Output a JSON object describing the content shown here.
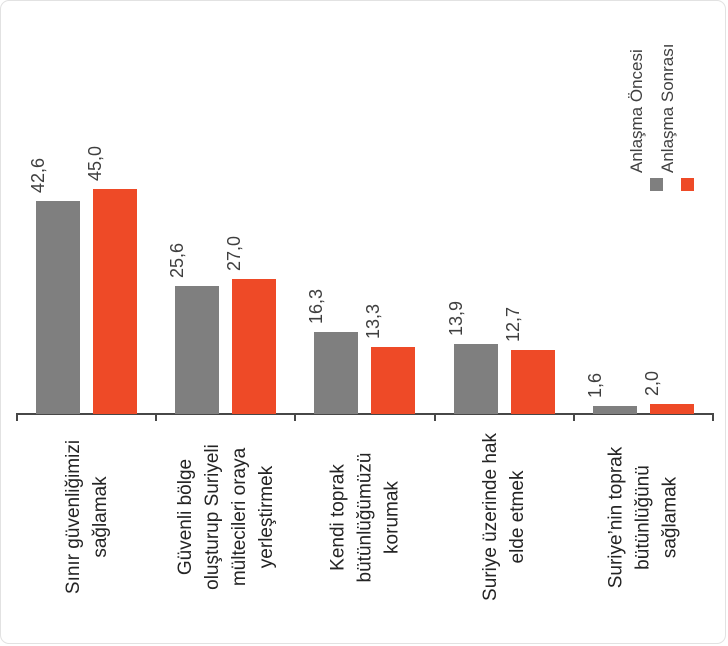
{
  "chart_data": {
    "type": "bar",
    "title": "",
    "xlabel": "",
    "ylabel": "",
    "ylim": [
      0,
      45
    ],
    "grid": false,
    "legend_position": "top-right",
    "value_label_rotation_deg": 90,
    "category_label_rotation_deg": 90,
    "decimal_separator": ",",
    "categories": [
      "Sınır güvenliğimizi sağlamak",
      "Güvenli bölge oluşturup Suriyeli mültecileri oraya yerleştirmek",
      "Kendi toprak bütünlüğümüzü korumak",
      "Suriye üzerinde hak elde etmek",
      "Suriye’nin toprak bütünlüğünü sağlamak"
    ],
    "categories_wrapped": [
      [
        "Sınır güvenliğimizi",
        "sağlamak"
      ],
      [
        "Güvenli bölge",
        "oluşturup Suriyeli",
        "mültecileri oraya",
        "yerleştirmek"
      ],
      [
        "Kendi toprak",
        "bütünlüğümüzü",
        "korumak"
      ],
      [
        "Suriye üzerinde hak",
        "elde etmek"
      ],
      [
        "Suriye’nin toprak",
        "bütünlüğünü",
        "sağlamak"
      ]
    ],
    "series": [
      {
        "name": "Anlaşma Öncesi",
        "color": "#7f7f7f",
        "values": [
          42.6,
          25.6,
          16.3,
          13.9,
          1.6
        ],
        "value_labels": [
          "42,6",
          "25,6",
          "16,3",
          "13,9",
          "1,6"
        ]
      },
      {
        "name": "Anlaşma Sonrası",
        "color": "#ee4a27",
        "values": [
          45.0,
          27.0,
          13.3,
          12.7,
          2.0
        ],
        "value_labels": [
          "45,0",
          "27,0",
          "13,3",
          "12,7",
          "2,0"
        ]
      }
    ],
    "colors": {
      "axis": "#474747",
      "value_label": "#3f3f3f",
      "category_label": "#242424",
      "legend_label": "#404040",
      "background": "#ffffff",
      "card_border": "#e2e2e2"
    }
  }
}
